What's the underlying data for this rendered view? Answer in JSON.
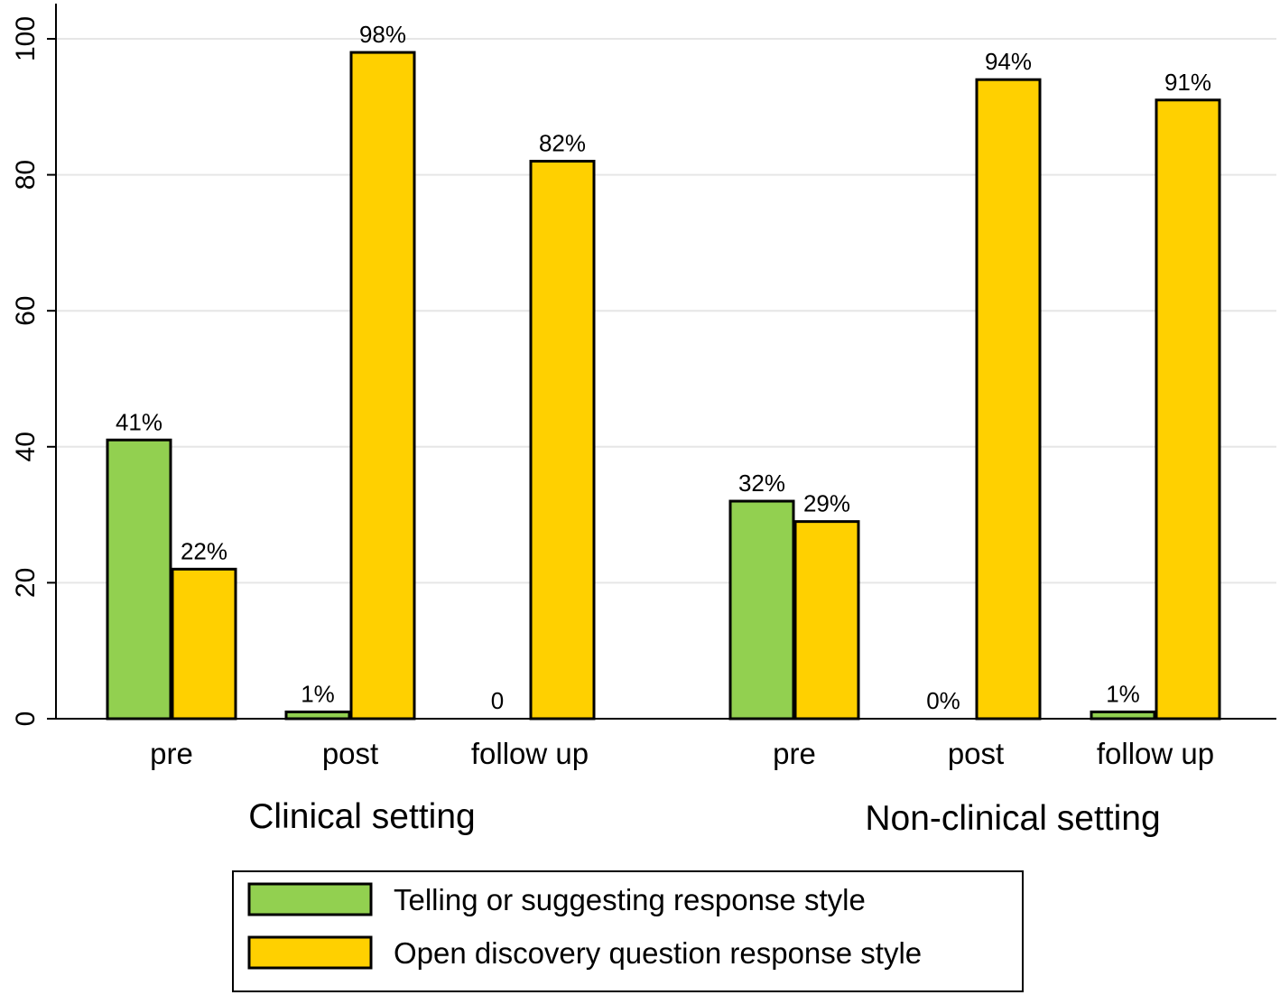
{
  "chart_data": {
    "type": "bar",
    "title": "",
    "xlabel": "",
    "ylabel": "",
    "ylim": [
      0,
      100
    ],
    "yticks": [
      0,
      20,
      40,
      60,
      80,
      100
    ],
    "grid": true,
    "legend_position": "bottom",
    "groups": [
      {
        "label": "Clinical setting",
        "categories": [
          {
            "label": "pre",
            "values": [
              41,
              22
            ],
            "data_labels": [
              "41%",
              "22%"
            ]
          },
          {
            "label": "post",
            "values": [
              1,
              98
            ],
            "data_labels": [
              "1%",
              "98%"
            ]
          },
          {
            "label": "follow up",
            "values": [
              0,
              82
            ],
            "data_labels": [
              "0",
              "82%"
            ]
          }
        ]
      },
      {
        "label": "Non-clinical setting",
        "categories": [
          {
            "label": "pre",
            "values": [
              32,
              29
            ],
            "data_labels": [
              "32%",
              "29%"
            ]
          },
          {
            "label": "post",
            "values": [
              0,
              94
            ],
            "data_labels": [
              "0%",
              "94%"
            ]
          },
          {
            "label": "follow up",
            "values": [
              1,
              91
            ],
            "data_labels": [
              "1%",
              "91%"
            ]
          }
        ]
      }
    ],
    "series": [
      {
        "name": "Telling or suggesting response style",
        "color": "#92d050",
        "thin_color": "#22cc22"
      },
      {
        "name": "Open discovery question response style",
        "color": "#ffd000"
      }
    ]
  }
}
